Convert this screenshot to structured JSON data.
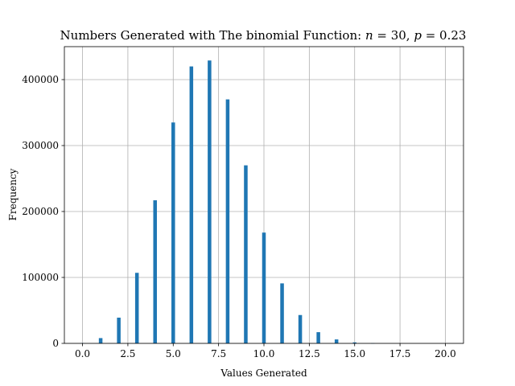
{
  "chart_data": {
    "type": "bar",
    "title": {
      "prefix": "Numbers Generated with The binomial Function: ",
      "n_var": "n",
      "n_eq": " = 30, ",
      "p_var": "p",
      "p_eq": " = 0.23"
    },
    "xlabel": "Values Generated",
    "ylabel": "Frequency",
    "xlim": [
      -1.0,
      21.0
    ],
    "ylim": [
      0,
      450000
    ],
    "xticks": [
      0.0,
      2.5,
      5.0,
      7.5,
      10.0,
      12.5,
      15.0,
      17.5,
      20.0
    ],
    "xtick_labels": [
      "0.0",
      "2.5",
      "5.0",
      "7.5",
      "10.0",
      "12.5",
      "15.0",
      "17.5",
      "20.0"
    ],
    "yticks": [
      0,
      100000,
      200000,
      300000,
      400000
    ],
    "ytick_labels": [
      "0",
      "100000",
      "200000",
      "300000",
      "400000"
    ],
    "grid": true,
    "bar_color": "#1f77b4",
    "bin_width": 0.2,
    "bars": [
      {
        "x": 0,
        "value": 500
      },
      {
        "x": 1,
        "value": 8000
      },
      {
        "x": 2,
        "value": 39000
      },
      {
        "x": 3,
        "value": 107000
      },
      {
        "x": 4,
        "value": 217000
      },
      {
        "x": 5,
        "value": 335000
      },
      {
        "x": 6,
        "value": 420000
      },
      {
        "x": 7,
        "value": 429000
      },
      {
        "x": 8,
        "value": 370000
      },
      {
        "x": 9,
        "value": 270000
      },
      {
        "x": 10,
        "value": 168000
      },
      {
        "x": 11,
        "value": 91000
      },
      {
        "x": 12,
        "value": 43000
      },
      {
        "x": 13,
        "value": 17000
      },
      {
        "x": 14,
        "value": 6000
      },
      {
        "x": 15,
        "value": 1500
      },
      {
        "x": 16,
        "value": 300
      }
    ]
  }
}
